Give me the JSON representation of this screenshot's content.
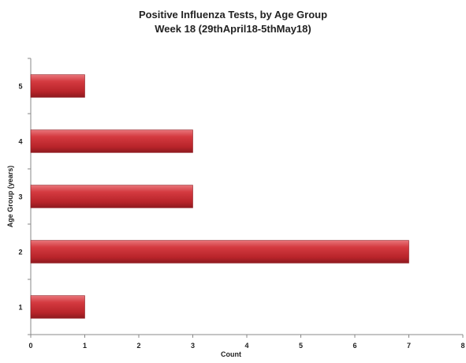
{
  "chart_data": {
    "type": "bar",
    "orientation": "horizontal",
    "title": "Positive Influenza Tests, by Age Group",
    "subtitle": "Week 18 (29thApril18-5thMay18)",
    "xlabel": "Count",
    "ylabel": "Age Group (years)",
    "categories": [
      "1",
      "2",
      "3",
      "4",
      "5"
    ],
    "values": [
      1,
      7,
      3,
      3,
      1
    ],
    "xlim": [
      0,
      8
    ],
    "xticks": [
      "0",
      "1",
      "2",
      "3",
      "4",
      "5",
      "6",
      "7",
      "8"
    ],
    "grid": false,
    "legend": "none",
    "bar_color": "#c0282e"
  }
}
